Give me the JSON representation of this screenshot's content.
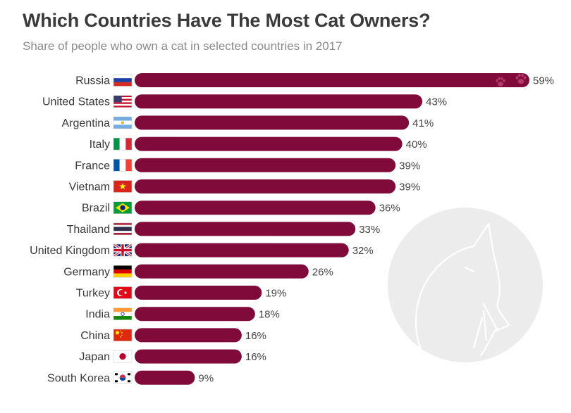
{
  "header": {
    "title": "Which Countries Have The Most Cat Owners?",
    "subtitle": "Share of people who own a cat in selected countries in 2017"
  },
  "colors": {
    "bar": "#800b3a",
    "background_circle": "#ececec",
    "cat_outline": "#ffffff"
  },
  "decorations": {
    "paw_icon": "paw-print-icon",
    "cat_illustration": "cat-outline-icon"
  },
  "chart_data": {
    "type": "bar",
    "orientation": "horizontal",
    "title": "Which Countries Have The Most Cat Owners?",
    "subtitle": "Share of people who own a cat in selected countries in 2017",
    "categories": [
      "Russia",
      "United States",
      "Argentina",
      "Italy",
      "France",
      "Vietnam",
      "Brazil",
      "Thailand",
      "United Kingdom",
      "Germany",
      "Turkey",
      "India",
      "China",
      "Japan",
      "South Korea"
    ],
    "flags": [
      "flag-russia-icon",
      "flag-united-states-icon",
      "flag-argentina-icon",
      "flag-italy-icon",
      "flag-france-icon",
      "flag-vietnam-icon",
      "flag-brazil-icon",
      "flag-thailand-icon",
      "flag-united-kingdom-icon",
      "flag-germany-icon",
      "flag-turkey-icon",
      "flag-india-icon",
      "flag-china-icon",
      "flag-japan-icon",
      "flag-south-korea-icon"
    ],
    "values": [
      59,
      43,
      41,
      40,
      39,
      39,
      36,
      33,
      32,
      26,
      19,
      18,
      16,
      16,
      9
    ],
    "value_labels": [
      "59%",
      "43%",
      "41%",
      "40%",
      "39%",
      "39%",
      "36%",
      "33%",
      "32%",
      "26%",
      "19%",
      "18%",
      "16%",
      "16%",
      "9%"
    ],
    "unit": "%",
    "xlim": [
      0,
      59
    ],
    "grid": false,
    "legend": "none"
  }
}
